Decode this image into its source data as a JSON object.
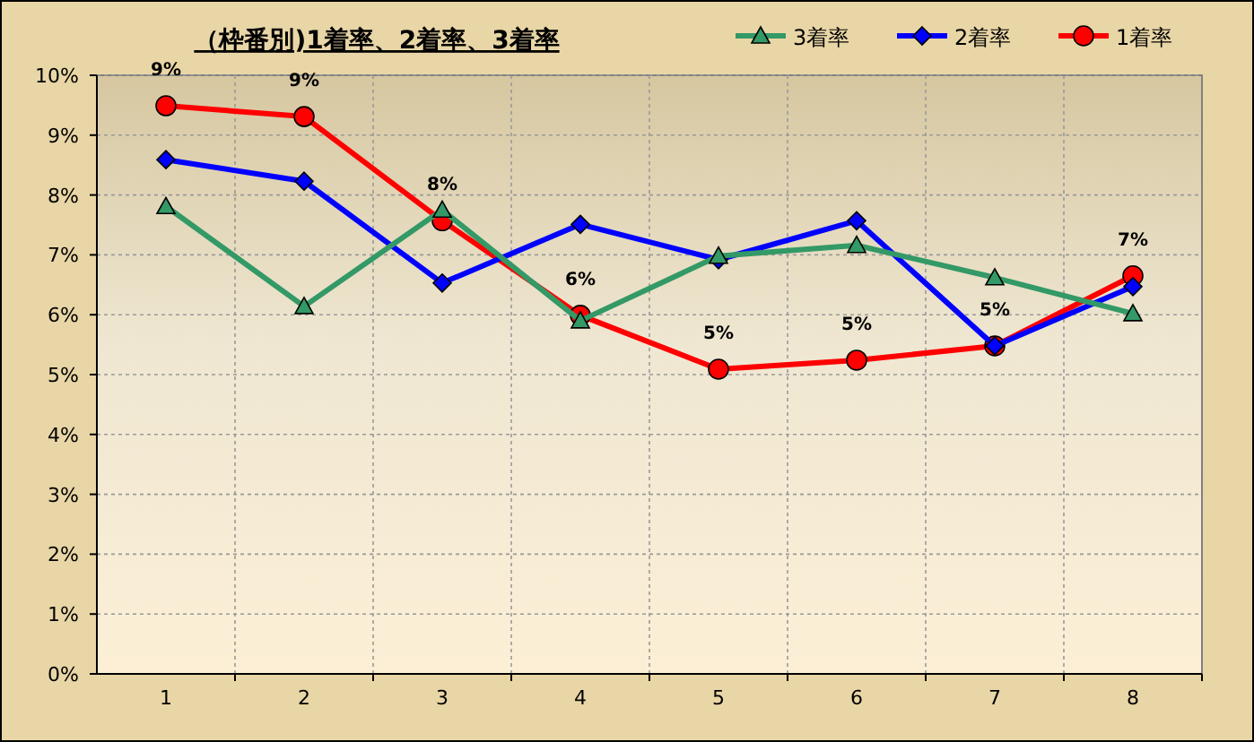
{
  "chart_data": {
    "type": "line",
    "title": "（枠番別)1着率、2着率、3着率",
    "categories": [
      "1",
      "2",
      "3",
      "4",
      "5",
      "6",
      "7",
      "8"
    ],
    "series": [
      {
        "name": "3着率",
        "color": "#339966",
        "marker": "triangle",
        "values": [
          7.81,
          6.14,
          7.75,
          5.9,
          6.98,
          7.16,
          6.62,
          6.02
        ]
      },
      {
        "name": "2着率",
        "color": "#0000ff",
        "marker": "diamond",
        "values": [
          8.59,
          8.23,
          6.53,
          7.51,
          6.92,
          7.57,
          5.48,
          6.47
        ]
      },
      {
        "name": "1着率",
        "color": "#ff0000",
        "marker": "circle",
        "values": [
          9.49,
          9.31,
          7.57,
          5.99,
          5.09,
          5.24,
          5.48,
          6.65
        ],
        "value_labels": [
          "9%",
          "9%",
          "8%",
          "6%",
          "5%",
          "5%",
          "5%",
          "7%"
        ]
      }
    ],
    "ylim": [
      0,
      10
    ],
    "yticks": [
      {
        "value": 0,
        "label": "0%"
      },
      {
        "value": 1,
        "label": "1%"
      },
      {
        "value": 2,
        "label": "2%"
      },
      {
        "value": 3,
        "label": "3%"
      },
      {
        "value": 4,
        "label": "4%"
      },
      {
        "value": 5,
        "label": "5%"
      },
      {
        "value": 6,
        "label": "6%"
      },
      {
        "value": 7,
        "label": "7%"
      },
      {
        "value": 8,
        "label": "8%"
      },
      {
        "value": 9,
        "label": "9%"
      },
      {
        "value": 10,
        "label": "10%"
      }
    ],
    "grid": true,
    "legend": "top right",
    "line_style": "solid"
  }
}
